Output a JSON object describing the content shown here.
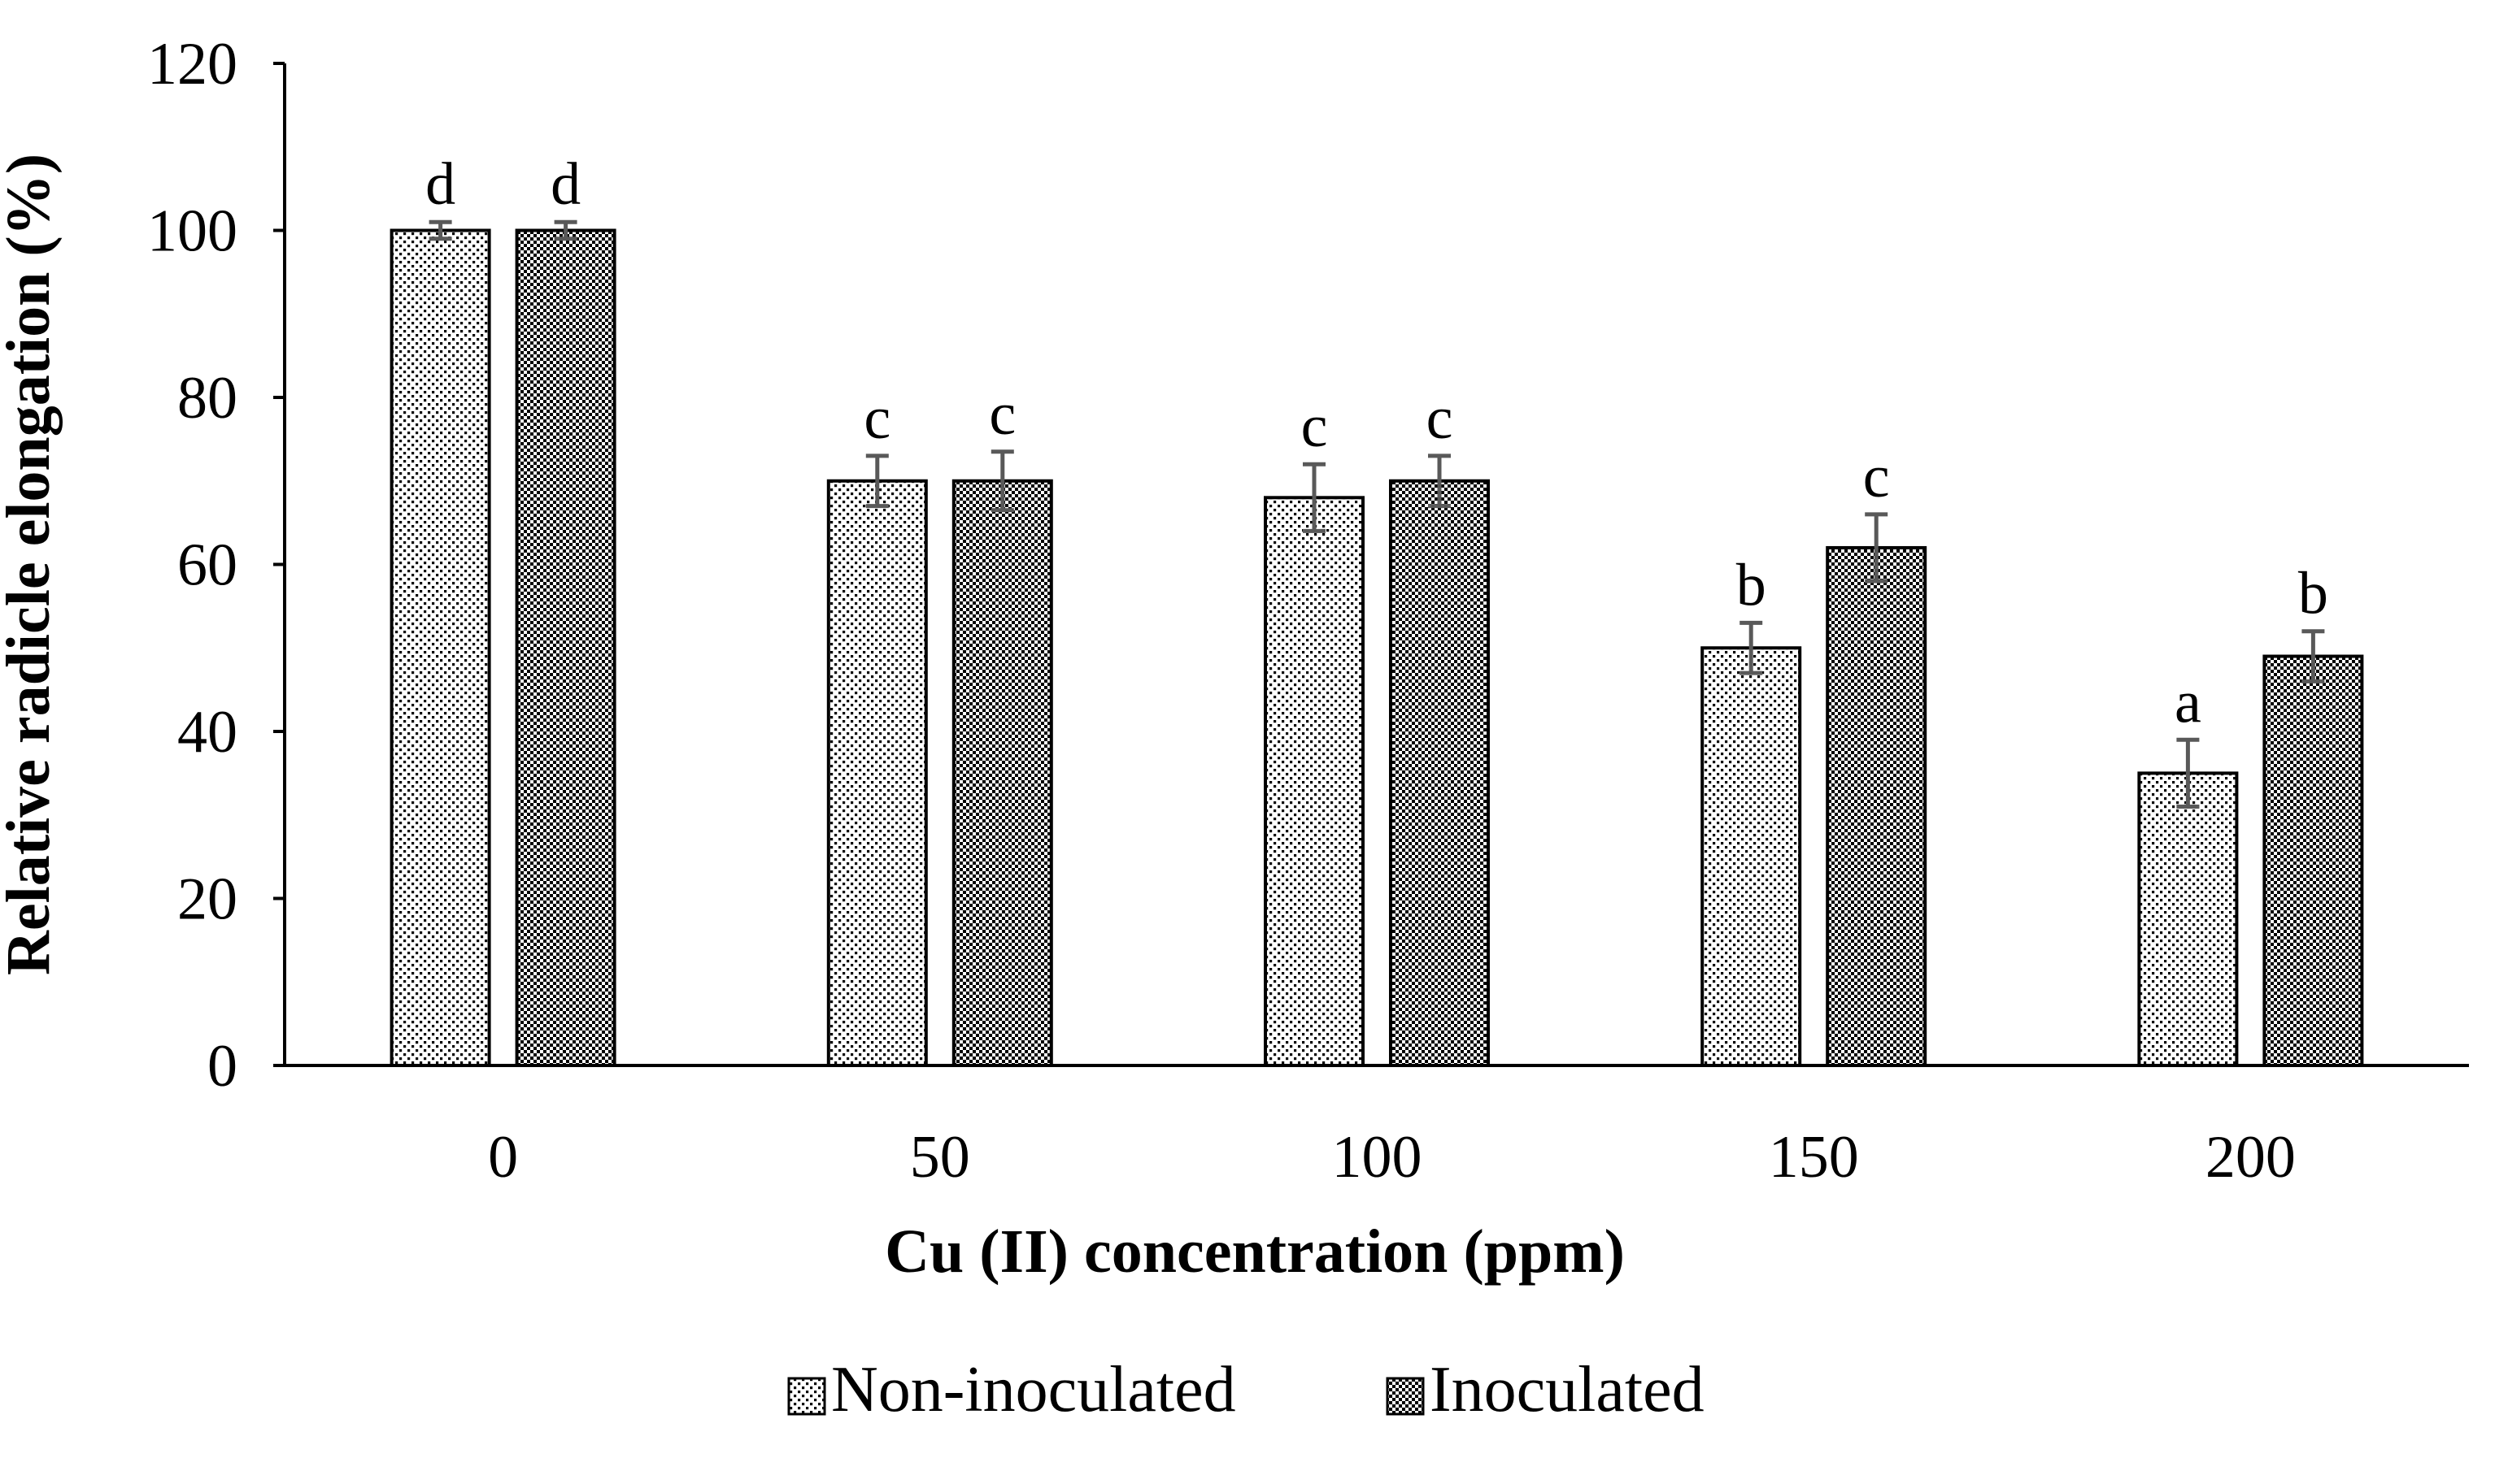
{
  "chart_data": {
    "type": "bar",
    "title": "",
    "xlabel": "Cu (II) concentration (ppm)",
    "ylabel": "Relative radicle elongation (%)",
    "ylim": [
      0,
      120
    ],
    "yticks": [
      0,
      20,
      40,
      60,
      80,
      100,
      120
    ],
    "categories": [
      "0",
      "50",
      "100",
      "150",
      "200"
    ],
    "series": [
      {
        "name": "Non-inoculated",
        "pattern": "fine-dots",
        "values": [
          100,
          70,
          68,
          50,
          35
        ],
        "errors": [
          1,
          3,
          4,
          3,
          4
        ],
        "letters": [
          "d",
          "c",
          "c",
          "b",
          "a"
        ]
      },
      {
        "name": "Inoculated",
        "pattern": "dense-checker",
        "values": [
          100,
          70,
          70,
          62,
          49
        ],
        "errors": [
          1,
          3.5,
          3,
          4,
          3
        ],
        "letters": [
          "d",
          "c",
          "c",
          "c",
          "b"
        ]
      }
    ],
    "legend_position": "bottom-center",
    "grid": false
  },
  "colors": {
    "bar_fill": "#ffffff",
    "bar_pattern": "#000000",
    "bar_edge": "#000000",
    "axis": "#000000",
    "error_bar": "#595959"
  }
}
